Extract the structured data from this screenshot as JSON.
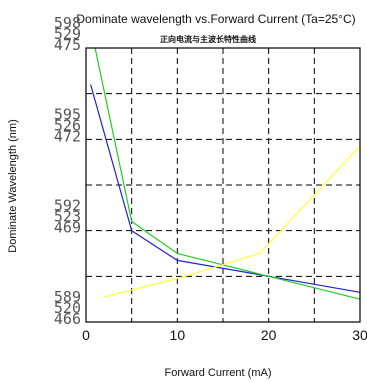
{
  "chart_data": {
    "type": "line",
    "title": "Dominate wavelength vs.Forward Current (Ta=25°C)",
    "subtitle": "正向电流与主波长特性曲线",
    "xlabel": "Forward  Current (mA)",
    "ylabel": "Dominate Wavelength (nm)",
    "x_ticks": [
      "0",
      "10",
      "20",
      "30"
    ],
    "xlim": [
      0,
      30
    ],
    "ylim": [
      0,
      6
    ],
    "grid": true,
    "y_tick_groups": [
      {
        "level": 0,
        "labels": [
          "589",
          "520",
          "466"
        ]
      },
      {
        "level": 2,
        "labels": [
          "592",
          "523",
          "469"
        ]
      },
      {
        "level": 4,
        "labels": [
          "595",
          "526",
          "472"
        ]
      },
      {
        "level": 6,
        "labels": [
          "598",
          "529",
          "475"
        ]
      }
    ],
    "series": [
      {
        "color": "#2222cc",
        "x": [
          0.5,
          5,
          10,
          20,
          30
        ],
        "y": [
          5.2,
          2.0,
          1.35,
          1.0,
          0.65
        ]
      },
      {
        "color": "#22cc22",
        "x": [
          1,
          5,
          10,
          20,
          30
        ],
        "y": [
          6.0,
          2.2,
          1.5,
          1.0,
          0.5
        ]
      },
      {
        "color": "#ffff33",
        "x": [
          2,
          10,
          19,
          30
        ],
        "y": [
          0.55,
          0.95,
          1.5,
          3.85
        ]
      }
    ]
  }
}
